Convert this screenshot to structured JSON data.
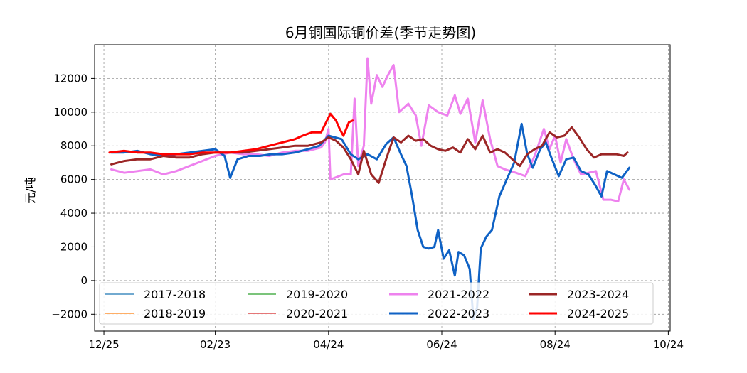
{
  "chart_data": {
    "type": "line",
    "title": "6月铜国际铜价差(季节走势图)",
    "ylabel": "元/吨",
    "xlabel": "",
    "x_ticks": [
      "12/25",
      "02/23",
      "04/24",
      "06/24",
      "08/24",
      "10/24"
    ],
    "y_ticks": [
      -2000,
      0,
      2000,
      4000,
      6000,
      8000,
      10000,
      12000
    ],
    "ylim": [
      -3000,
      14000
    ],
    "xlim": [
      "12/20",
      "10/25"
    ],
    "grid": true,
    "legend_position": "bottom",
    "series": [
      {
        "name": "2017-2018",
        "color": "#1f77b4",
        "width": 1.2,
        "points": []
      },
      {
        "name": "2018-2019",
        "color": "#ff7f0e",
        "width": 1.2,
        "points": []
      },
      {
        "name": "2019-2020",
        "color": "#2ca02c",
        "width": 1.2,
        "points": []
      },
      {
        "name": "2020-2021",
        "color": "#d62728",
        "width": 1.2,
        "points": []
      },
      {
        "name": "2021-2022",
        "color": "#ee82ee",
        "width": 3,
        "points": [
          [
            "12/29",
            6600
          ],
          [
            "01/05",
            6400
          ],
          [
            "01/12",
            6500
          ],
          [
            "01/19",
            6600
          ],
          [
            "01/26",
            6300
          ],
          [
            "02/02",
            6500
          ],
          [
            "02/09",
            6800
          ],
          [
            "02/16",
            7100
          ],
          [
            "02/23",
            7400
          ],
          [
            "03/02",
            7600
          ],
          [
            "03/09",
            7500
          ],
          [
            "03/16",
            7500
          ],
          [
            "03/23",
            7400
          ],
          [
            "03/30",
            7600
          ],
          [
            "04/06",
            7700
          ],
          [
            "04/13",
            7700
          ],
          [
            "04/20",
            7900
          ],
          [
            "04/22",
            8200
          ],
          [
            "04/24",
            9000
          ],
          [
            "04/25",
            6000
          ],
          [
            "05/02",
            6300
          ],
          [
            "05/06",
            6300
          ],
          [
            "05/08",
            10800
          ],
          [
            "05/10",
            6800
          ],
          [
            "05/13",
            8000
          ],
          [
            "05/15",
            13200
          ],
          [
            "05/17",
            10500
          ],
          [
            "05/20",
            12200
          ],
          [
            "05/23",
            11500
          ],
          [
            "05/26",
            12200
          ],
          [
            "05/29",
            12800
          ],
          [
            "06/01",
            10000
          ],
          [
            "06/06",
            10500
          ],
          [
            "06/10",
            9800
          ],
          [
            "06/13",
            8000
          ],
          [
            "06/17",
            10400
          ],
          [
            "06/22",
            10000
          ],
          [
            "06/27",
            9800
          ],
          [
            "07/01",
            11000
          ],
          [
            "07/04",
            9900
          ],
          [
            "07/08",
            10800
          ],
          [
            "07/12",
            8200
          ],
          [
            "07/16",
            10700
          ],
          [
            "07/20",
            8400
          ],
          [
            "07/24",
            6800
          ],
          [
            "07/28",
            6600
          ],
          [
            "08/03",
            6400
          ],
          [
            "08/08",
            6200
          ],
          [
            "08/13",
            7400
          ],
          [
            "08/18",
            9000
          ],
          [
            "08/21",
            7800
          ],
          [
            "08/24",
            8600
          ],
          [
            "08/27",
            7000
          ],
          [
            "08/30",
            8400
          ],
          [
            "09/03",
            7200
          ],
          [
            "09/07",
            6300
          ],
          [
            "09/11",
            6400
          ],
          [
            "09/15",
            6500
          ],
          [
            "09/19",
            4800
          ],
          [
            "09/23",
            4800
          ],
          [
            "09/27",
            4700
          ],
          [
            "09/30",
            6000
          ],
          [
            "10/03",
            5400
          ]
        ]
      },
      {
        "name": "2022-2023",
        "color": "#0f62c5",
        "width": 3,
        "points": [
          [
            "12/29",
            7600
          ],
          [
            "01/05",
            7600
          ],
          [
            "01/12",
            7700
          ],
          [
            "01/19",
            7500
          ],
          [
            "01/26",
            7400
          ],
          [
            "02/02",
            7500
          ],
          [
            "02/09",
            7600
          ],
          [
            "02/16",
            7700
          ],
          [
            "02/23",
            7800
          ],
          [
            "02/28",
            7400
          ],
          [
            "03/02",
            6100
          ],
          [
            "03/06",
            7200
          ],
          [
            "03/12",
            7400
          ],
          [
            "03/18",
            7400
          ],
          [
            "03/24",
            7500
          ],
          [
            "03/30",
            7500
          ],
          [
            "04/06",
            7600
          ],
          [
            "04/13",
            7800
          ],
          [
            "04/19",
            8000
          ],
          [
            "04/24",
            8600
          ],
          [
            "05/01",
            8400
          ],
          [
            "05/06",
            7500
          ],
          [
            "05/10",
            7200
          ],
          [
            "05/15",
            7500
          ],
          [
            "05/20",
            7200
          ],
          [
            "05/25",
            8100
          ],
          [
            "05/29",
            8500
          ],
          [
            "06/02",
            7500
          ],
          [
            "06/05",
            6800
          ],
          [
            "06/08",
            5000
          ],
          [
            "06/11",
            3000
          ],
          [
            "06/14",
            2000
          ],
          [
            "06/17",
            1900
          ],
          [
            "06/20",
            2000
          ],
          [
            "06/22",
            3000
          ],
          [
            "06/25",
            1300
          ],
          [
            "06/28",
            1800
          ],
          [
            "07/01",
            300
          ],
          [
            "07/03",
            1700
          ],
          [
            "07/06",
            1500
          ],
          [
            "07/09",
            700
          ],
          [
            "07/11",
            -2300
          ],
          [
            "07/13",
            -1600
          ],
          [
            "07/15",
            1900
          ],
          [
            "07/18",
            2600
          ],
          [
            "07/21",
            3000
          ],
          [
            "07/25",
            5000
          ],
          [
            "07/29",
            6000
          ],
          [
            "08/02",
            7000
          ],
          [
            "08/06",
            9300
          ],
          [
            "08/09",
            7500
          ],
          [
            "08/12",
            6700
          ],
          [
            "08/16",
            7800
          ],
          [
            "08/19",
            8200
          ],
          [
            "08/22",
            7300
          ],
          [
            "08/26",
            6200
          ],
          [
            "08/30",
            7200
          ],
          [
            "09/03",
            7300
          ],
          [
            "09/07",
            6500
          ],
          [
            "09/11",
            6300
          ],
          [
            "09/15",
            5600
          ],
          [
            "09/18",
            5000
          ],
          [
            "09/21",
            6500
          ],
          [
            "09/25",
            6300
          ],
          [
            "09/29",
            6100
          ],
          [
            "10/03",
            6700
          ]
        ]
      },
      {
        "name": "2023-2024",
        "color": "#9b2626",
        "width": 3,
        "points": [
          [
            "12/29",
            6900
          ],
          [
            "01/05",
            7100
          ],
          [
            "01/12",
            7200
          ],
          [
            "01/19",
            7200
          ],
          [
            "01/26",
            7400
          ],
          [
            "02/02",
            7300
          ],
          [
            "02/09",
            7300
          ],
          [
            "02/16",
            7500
          ],
          [
            "02/23",
            7600
          ],
          [
            "03/02",
            7600
          ],
          [
            "03/09",
            7600
          ],
          [
            "03/16",
            7700
          ],
          [
            "03/23",
            7800
          ],
          [
            "03/30",
            7900
          ],
          [
            "04/06",
            8000
          ],
          [
            "04/13",
            8000
          ],
          [
            "04/20",
            8200
          ],
          [
            "04/24",
            8500
          ],
          [
            "04/28",
            8300
          ],
          [
            "05/02",
            7900
          ],
          [
            "05/06",
            7200
          ],
          [
            "05/10",
            6300
          ],
          [
            "05/13",
            7700
          ],
          [
            "05/17",
            6300
          ],
          [
            "05/21",
            5800
          ],
          [
            "05/25",
            7200
          ],
          [
            "05/29",
            8500
          ],
          [
            "06/02",
            8200
          ],
          [
            "06/06",
            8600
          ],
          [
            "06/10",
            8300
          ],
          [
            "06/14",
            8400
          ],
          [
            "06/18",
            8000
          ],
          [
            "06/22",
            7800
          ],
          [
            "06/26",
            7700
          ],
          [
            "06/30",
            7900
          ],
          [
            "07/04",
            7600
          ],
          [
            "07/08",
            8400
          ],
          [
            "07/12",
            7800
          ],
          [
            "07/16",
            8600
          ],
          [
            "07/20",
            7600
          ],
          [
            "07/24",
            7800
          ],
          [
            "07/28",
            7600
          ],
          [
            "08/01",
            7200
          ],
          [
            "08/05",
            6800
          ],
          [
            "08/09",
            7500
          ],
          [
            "08/13",
            7800
          ],
          [
            "08/17",
            8000
          ],
          [
            "08/21",
            8800
          ],
          [
            "08/25",
            8500
          ],
          [
            "08/29",
            8600
          ],
          [
            "09/02",
            9100
          ],
          [
            "09/06",
            8500
          ],
          [
            "09/10",
            7800
          ],
          [
            "09/14",
            7300
          ],
          [
            "09/18",
            7500
          ],
          [
            "09/22",
            7500
          ],
          [
            "09/26",
            7500
          ],
          [
            "09/30",
            7400
          ],
          [
            "10/02",
            7600
          ]
        ]
      },
      {
        "name": "2024-2025",
        "color": "#ff0000",
        "width": 3,
        "points": [
          [
            "12/28",
            7600
          ],
          [
            "01/05",
            7700
          ],
          [
            "01/12",
            7600
          ],
          [
            "01/19",
            7600
          ],
          [
            "01/26",
            7500
          ],
          [
            "02/02",
            7500
          ],
          [
            "02/09",
            7500
          ],
          [
            "02/16",
            7600
          ],
          [
            "02/23",
            7600
          ],
          [
            "03/02",
            7600
          ],
          [
            "03/09",
            7700
          ],
          [
            "03/16",
            7800
          ],
          [
            "03/23",
            8000
          ],
          [
            "03/30",
            8200
          ],
          [
            "04/06",
            8400
          ],
          [
            "04/10",
            8600
          ],
          [
            "04/15",
            8800
          ],
          [
            "04/20",
            8800
          ],
          [
            "04/25",
            9900
          ],
          [
            "04/28",
            9500
          ],
          [
            "04/30",
            9000
          ],
          [
            "05/02",
            8600
          ],
          [
            "05/05",
            9400
          ],
          [
            "05/07",
            9500
          ]
        ]
      }
    ]
  }
}
